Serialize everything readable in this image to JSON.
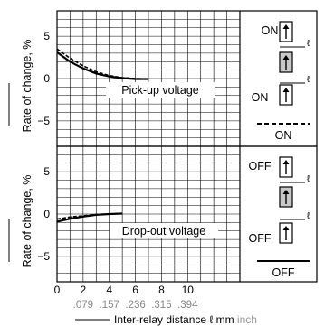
{
  "chart_data": [
    {
      "type": "line",
      "title": "",
      "annotation": "Pick-up voltage",
      "ylabel": "Rate of change, %",
      "xlabel": "",
      "xlim": [
        0,
        14
      ],
      "ylim": [
        -8,
        8
      ],
      "grid": true,
      "x_ticks": [
        0,
        2,
        4,
        6,
        8,
        10
      ],
      "y_ticks": [
        5,
        0,
        -5
      ],
      "series": [
        {
          "style": "solid",
          "color": "#000000",
          "x": [
            0,
            1,
            2,
            3,
            4,
            5,
            6,
            7
          ],
          "y": [
            3.1,
            2.0,
            1.2,
            0.6,
            0.25,
            0.05,
            -0.05,
            -0.05
          ]
        },
        {
          "style": "dashed",
          "color": "#000000",
          "x": [
            0,
            1,
            2,
            3,
            4,
            5,
            6,
            7
          ],
          "y": [
            3.5,
            2.4,
            1.5,
            0.8,
            0.35,
            0.1,
            0.0,
            -0.05
          ]
        }
      ],
      "legend": {
        "on_top_label": "ON",
        "on_bottom_label": "ON",
        "dashed_label": "ON"
      }
    },
    {
      "type": "line",
      "title": "",
      "annotation": "Drop-out voltage",
      "ylabel": "Rate of change, %",
      "xlabel": "Inter-relay distance  ℓ  mm",
      "xlabel_unit_secondary": "inch",
      "xlim": [
        0,
        14
      ],
      "ylim": [
        -8,
        8
      ],
      "grid": true,
      "x_ticks": [
        0,
        2,
        4,
        6,
        8,
        10
      ],
      "x_ticks_secondary": [
        ".079",
        ".157",
        ".236",
        ".315",
        ".394"
      ],
      "y_ticks": [
        5,
        0,
        -5
      ],
      "series": [
        {
          "style": "solid",
          "color": "#000000",
          "x": [
            0,
            1,
            2,
            3,
            4,
            5
          ],
          "y": [
            -0.9,
            -0.55,
            -0.3,
            -0.1,
            0.0,
            0.05
          ]
        },
        {
          "style": "dashed",
          "color": "#000000",
          "x": [
            0,
            1,
            2,
            3,
            4,
            5
          ],
          "y": [
            -0.6,
            -0.35,
            -0.2,
            -0.05,
            0.0,
            0.05
          ]
        }
      ],
      "legend": {
        "off_top_label": "OFF",
        "off_bottom_label": "OFF",
        "solid_label": "OFF"
      }
    }
  ],
  "symbols": {
    "ell": "ℓ"
  }
}
